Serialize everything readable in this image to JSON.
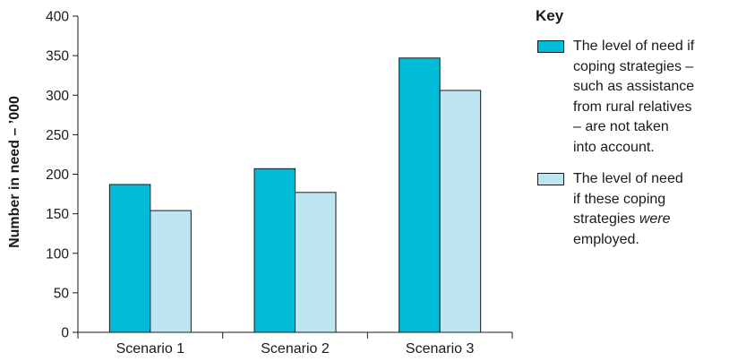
{
  "chart_data": {
    "type": "bar",
    "categories": [
      "Scenario 1",
      "Scenario 2",
      "Scenario 3"
    ],
    "series": [
      {
        "name": "The level of need if coping strategies – such as assistance from rural relatives – are not taken into account.",
        "values": [
          187,
          207,
          347
        ],
        "color": "#00bcd9"
      },
      {
        "name": "The level of need if these coping strategies were employed.",
        "values": [
          154,
          177,
          306
        ],
        "color": "#bde6f2"
      }
    ],
    "ylabel": "Number in need – ’000",
    "ylim": [
      0,
      400
    ],
    "yticks": [
      0,
      50,
      100,
      150,
      200,
      250,
      300,
      350,
      400
    ],
    "grid": false,
    "legend_placement": "right"
  },
  "key": {
    "title": "Key",
    "items": [
      {
        "lines": [
          "The level of need if",
          "coping strategies –",
          "such as assistance",
          "from rural relatives",
          "– are not taken",
          "into account."
        ]
      },
      {
        "lines": [
          "The level of need",
          "if these coping",
          "strategies ",
          "employed."
        ],
        "emphasis": "were"
      }
    ]
  }
}
